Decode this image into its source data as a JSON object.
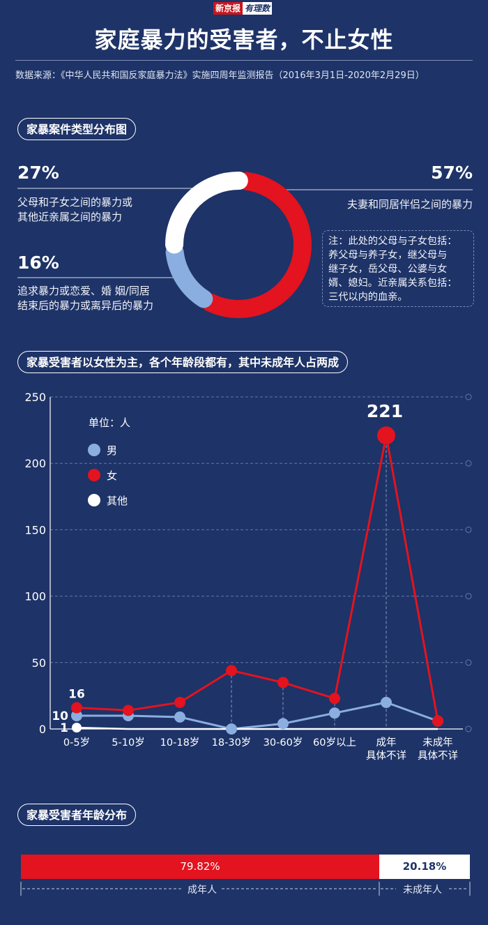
{
  "header": {
    "logo_left": "新京报",
    "logo_right": "有理数",
    "title": "家庭暴力的受害者，不止女性",
    "source": "数据来源：《中华人民共和国反家庭暴力法》实施四周年监测报告（2016年3月1日-2020年2月29日）"
  },
  "section1": {
    "heading": "家暴案件类型分布图",
    "note": [
      "注：此处的父母与子女包括：",
      "养父母与养子女，继父母与",
      "继子女，岳父母、公婆与女",
      "婿、媳妇。近亲属关系包括：",
      "三代以内的血亲。"
    ]
  },
  "section2": {
    "heading": "家暴受害者以女性为主，各个年龄段都有，其中未成年人占两成",
    "unit": "单位：人"
  },
  "section3": {
    "heading": "家暴受害者年龄分布"
  },
  "colors": {
    "background": "#1e3367",
    "red": "#e3131f",
    "light_blue": "#8aaee0",
    "white": "#ffffff"
  },
  "chart_data": [
    {
      "type": "pie",
      "slices": [
        {
          "label_lines": [
            "夫妻和同居伴侣之间的暴力"
          ],
          "value": 57,
          "display": "57%",
          "color": "#e3131f"
        },
        {
          "label_lines": [
            "追求暴力或恋爱、婚 姻/同居",
            "结束后的暴力或离异后的暴力"
          ],
          "value": 16,
          "display": "16%",
          "color": "#8aaee0"
        },
        {
          "label_lines": [
            "父母和子女之间的暴力或",
            "其他近亲属之间的暴力"
          ],
          "value": 27,
          "display": "27%",
          "color": "#ffffff"
        }
      ]
    },
    {
      "type": "line",
      "categories": [
        "0-5岁",
        "5-10岁",
        "10-18岁",
        "18-30岁",
        "30-60岁",
        "60岁以上",
        "成年\n具体不详",
        "未成年\n具体不详"
      ],
      "series": [
        {
          "name": "男",
          "color": "#8aaee0",
          "values": [
            10,
            10,
            9,
            0,
            4,
            12,
            20,
            6
          ]
        },
        {
          "name": "女",
          "color": "#e3131f",
          "values": [
            16,
            14,
            20,
            44,
            35,
            23,
            221,
            6
          ]
        },
        {
          "name": "其他",
          "color": "#ffffff",
          "values": [
            1,
            0,
            0,
            0,
            0,
            0,
            0,
            0
          ]
        }
      ],
      "annotations": [
        {
          "text": "16",
          "series": "女",
          "index": 0
        },
        {
          "text": "221",
          "series": "女",
          "index": 6
        },
        {
          "text": "10",
          "series": "男",
          "index": 0
        },
        {
          "text": "1",
          "series": "其他",
          "index": 0
        }
      ],
      "yticks": [
        0,
        50,
        100,
        150,
        200,
        250
      ],
      "ylim": [
        0,
        250
      ],
      "grid": true,
      "legend_position": "top-left"
    },
    {
      "type": "bar",
      "orientation": "horizontal-stacked",
      "segments": [
        {
          "label": "成年人",
          "value": 79.82,
          "display": "79.82%",
          "color": "#e3131f"
        },
        {
          "label": "未成年人",
          "value": 20.18,
          "display": "20.18%",
          "color": "#ffffff"
        }
      ]
    }
  ]
}
